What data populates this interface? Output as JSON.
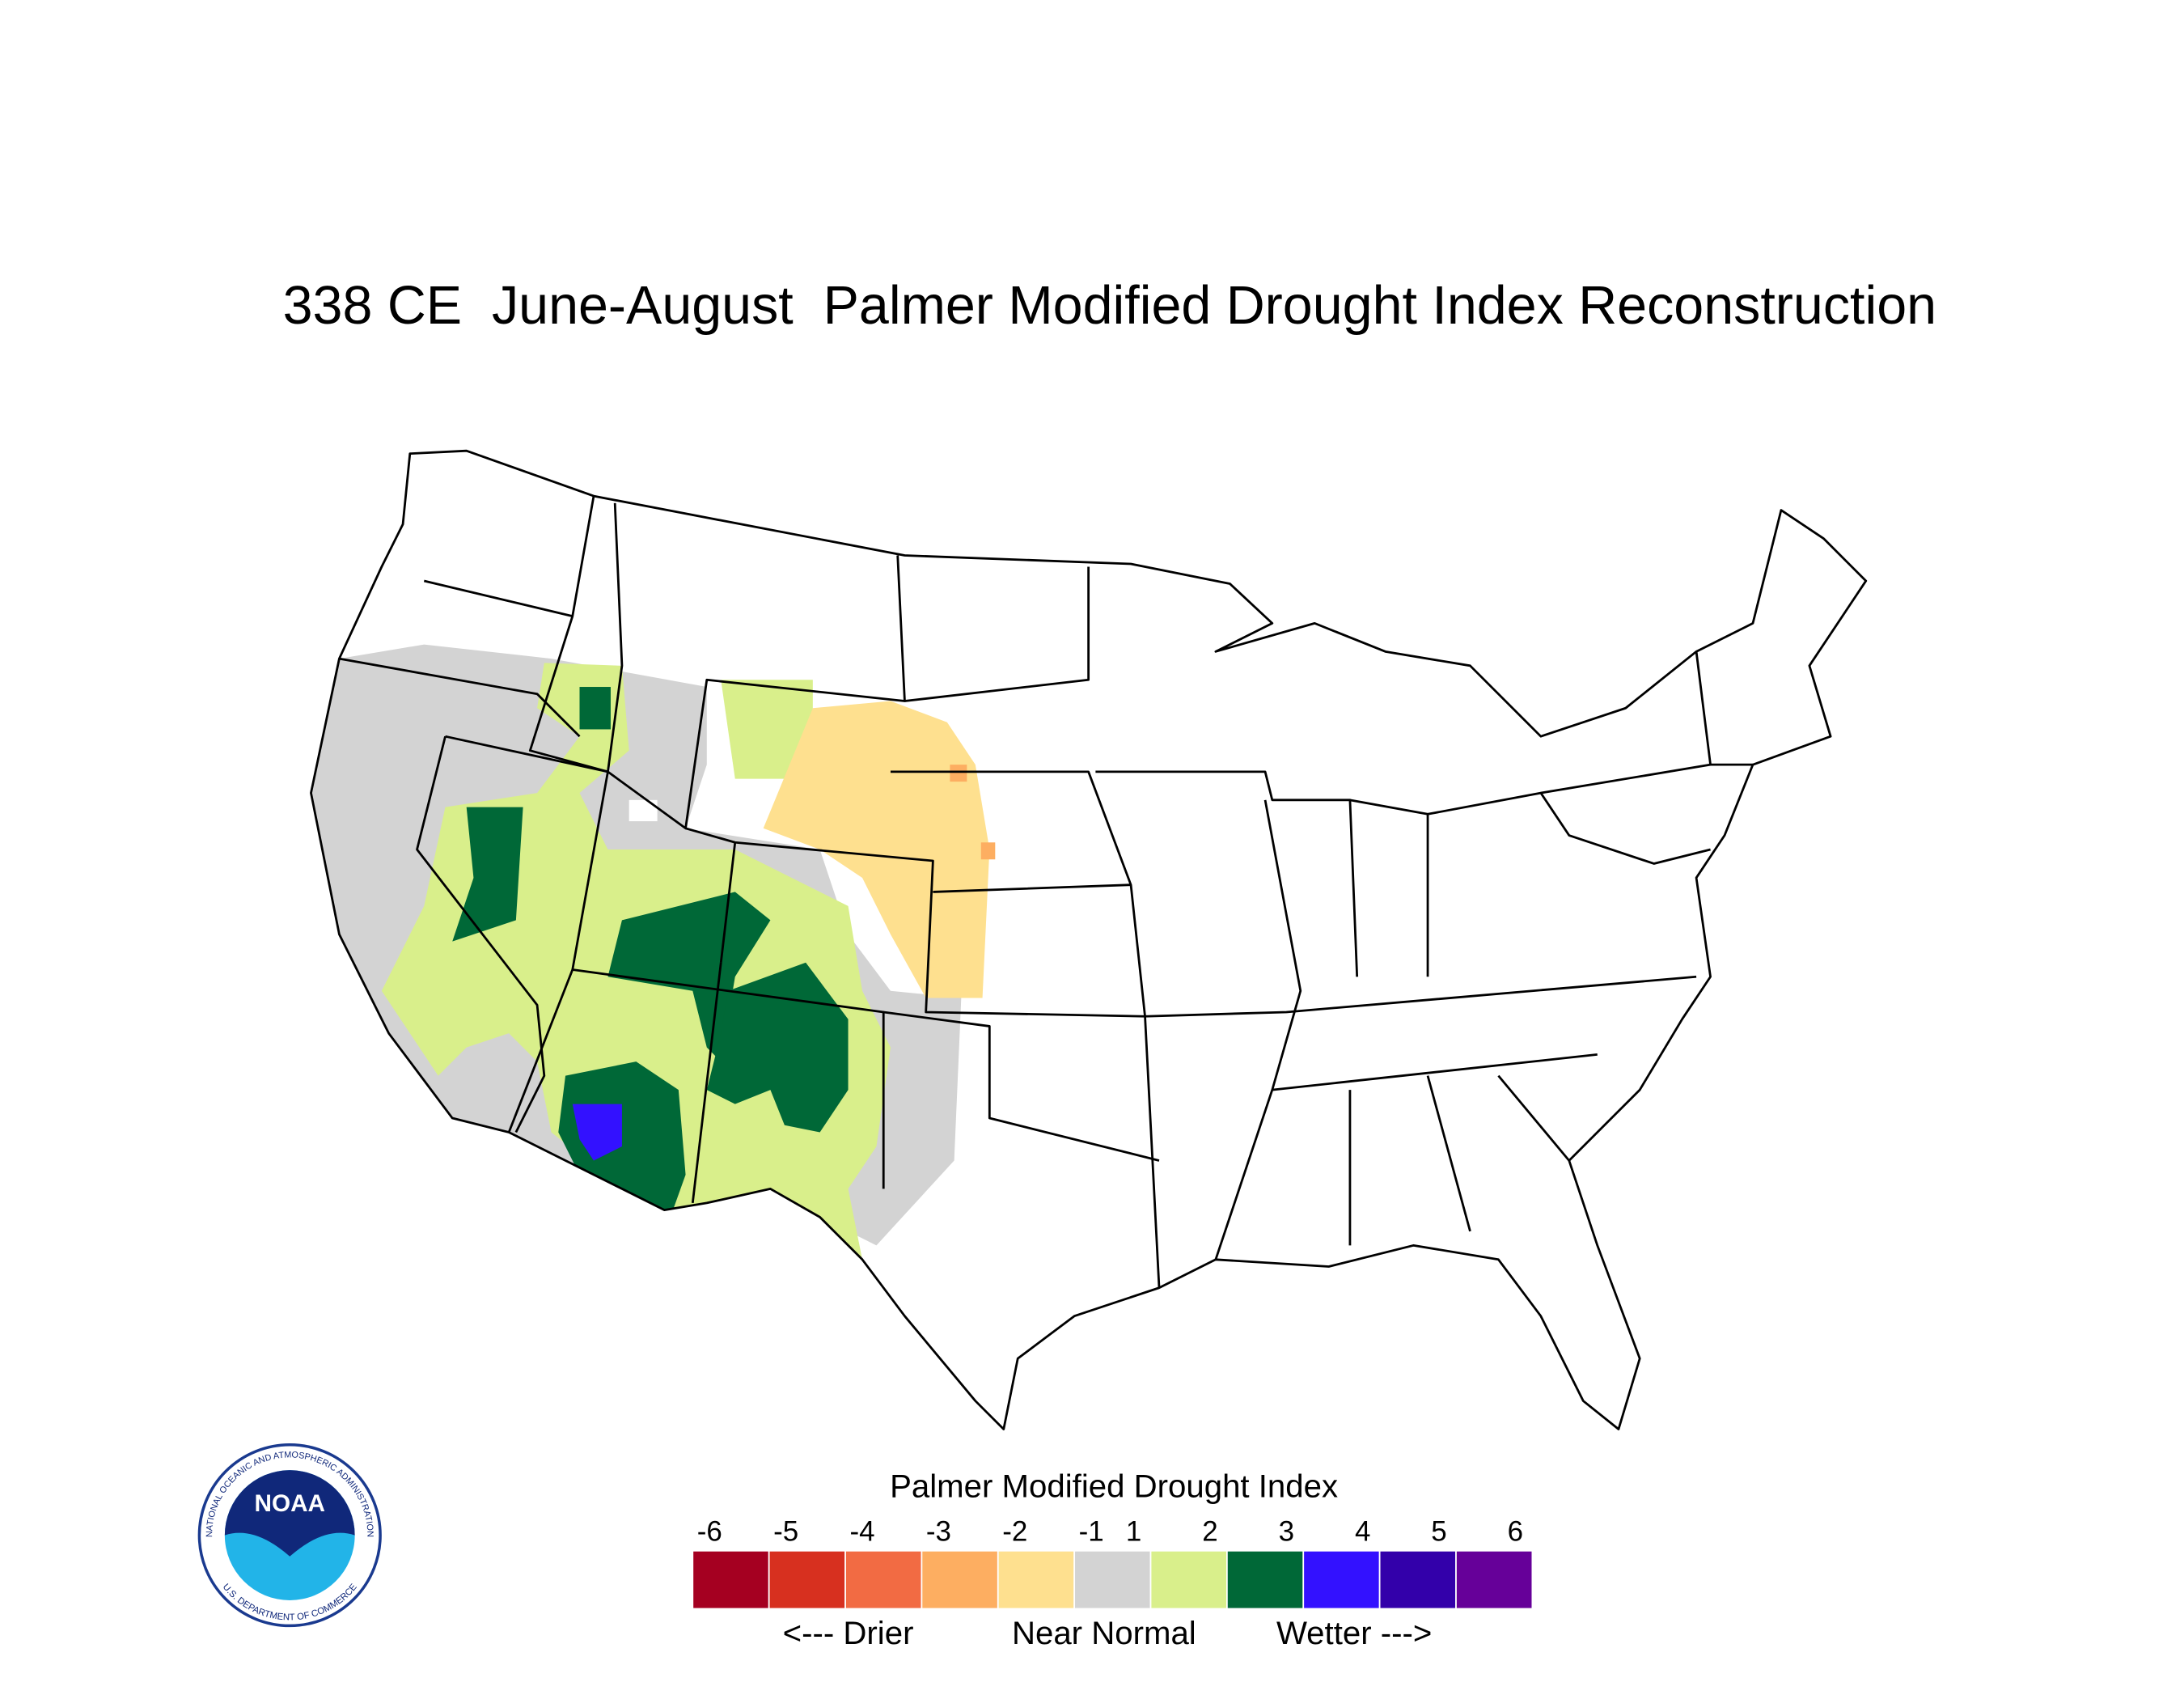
{
  "title": "338 CE  June-August  Palmer Modified Drought Index Reconstruction",
  "legend": {
    "title": "Palmer Modified Drought Index",
    "ticks": [
      -6,
      -5,
      -4,
      -3,
      -2,
      -1,
      1,
      2,
      3,
      4,
      5,
      6
    ],
    "colors": [
      "#a50021",
      "#d7301f",
      "#f26b43",
      "#fdae61",
      "#fee08f",
      "#d3d3d3",
      "#d9ef8b",
      "#006837",
      "#3311ff",
      "#3300aa",
      "#660099"
    ],
    "labels": [
      "<--- Drier",
      "Near Normal",
      "Wetter --->"
    ]
  },
  "logo": {
    "text": "NOAA",
    "ring_top": "NATIONAL OCEANIC AND ATMOSPHERIC ADMINISTRATION",
    "ring_bottom": "U.S. DEPARTMENT OF COMMERCE"
  }
}
